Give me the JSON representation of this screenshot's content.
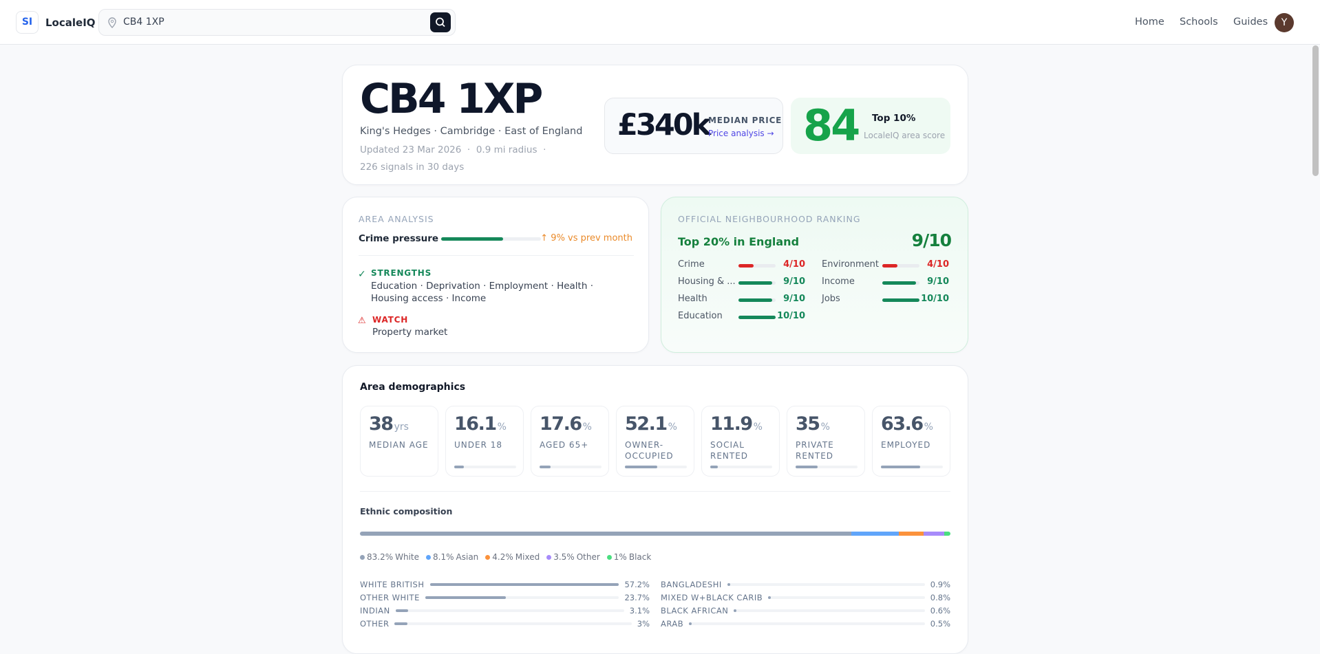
{
  "header": {
    "logo": "SI",
    "brand": "LocaleIQ",
    "search": "CB4 1XP",
    "nav": [
      "Home",
      "Schools",
      "Guides"
    ],
    "avatar": "Y"
  },
  "hero": {
    "title": "CB4 1XP",
    "location": "King's Hedges · Cambridge · East of England",
    "updated": "Updated 23 Mar 2026",
    "radius": "0.9 mi radius",
    "signals": "226 signals in 30 days",
    "price": "£340k",
    "price_label": "MEDIAN PRICE",
    "price_link": "Price analysis →",
    "score": 84,
    "score_rank": "Top 10%",
    "score_label": "LocaleIQ area score"
  },
  "analysis": {
    "heading": "AREA ANALYSIS",
    "metric": "Crime pressure",
    "change": "↑ 9% vs prev month",
    "strengths_heading": "STRENGTHS",
    "strengths": "Education · Deprivation · Employment · Health · Housing access · Income",
    "watch_heading": "WATCH",
    "watch": "Property market"
  },
  "ranking": {
    "heading": "OFFICIAL NEIGHBOURHOOD RANKING",
    "summary": "Top 20% in England",
    "overall": "9/10",
    "domains": [
      {
        "name": "Crime",
        "score": 4,
        "label": "4/10"
      },
      {
        "name": "Environment",
        "score": 4,
        "label": "4/10"
      },
      {
        "name": "Housing & ...",
        "score": 9,
        "label": "9/10"
      },
      {
        "name": "Income",
        "score": 9,
        "label": "9/10"
      },
      {
        "name": "Health",
        "score": 9,
        "label": "9/10"
      },
      {
        "name": "Jobs",
        "score": 10,
        "label": "10/10"
      },
      {
        "name": "Education",
        "score": 10,
        "label": "10/10"
      }
    ]
  },
  "demographics": {
    "heading": "Area demographics",
    "stats": [
      {
        "value": 38,
        "unit": "yrs",
        "label": "MEDIAN AGE"
      },
      {
        "value": 16.1,
        "unit": "%",
        "label": "UNDER 18"
      },
      {
        "value": 17.6,
        "unit": "%",
        "label": "AGED 65+"
      },
      {
        "value": 52.1,
        "unit": "%",
        "label": "OWNER-OCCUPIED"
      },
      {
        "value": 11.9,
        "unit": "%",
        "label": "SOCIAL RENTED"
      },
      {
        "value": 35,
        "unit": "%",
        "label": "PRIVATE RENTED"
      },
      {
        "value": 63.6,
        "unit": "%",
        "label": "EMPLOYED"
      }
    ],
    "ethnic_heading": "Ethnic composition",
    "groups": [
      {
        "name": "White",
        "value": 83.2,
        "value_label": "83.2%",
        "color": "#94a3b8"
      },
      {
        "name": "Asian",
        "value": 8.1,
        "value_label": "8.1%",
        "color": "#60a5fa"
      },
      {
        "name": "Mixed",
        "value": 4.2,
        "value_label": "4.2%",
        "color": "#fb923c"
      },
      {
        "name": "Other",
        "value": 3.5,
        "value_label": "3.5%",
        "color": "#a78bfa"
      },
      {
        "name": "Black",
        "value": 1,
        "value_label": "1%",
        "color": "#4ade80"
      }
    ],
    "detail": [
      {
        "name": "WHITE BRITISH",
        "value": 57.2,
        "value_label": "57.2%"
      },
      {
        "name": "OTHER WHITE",
        "value": 23.7,
        "value_label": "23.7%"
      },
      {
        "name": "INDIAN",
        "value": 3.1,
        "value_label": "3.1%"
      },
      {
        "name": "OTHER",
        "value": 3,
        "value_label": "3%"
      },
      {
        "name": "BANGLADESHI",
        "value": 0.9,
        "value_label": "0.9%"
      },
      {
        "name": "MIXED W+BLACK CARIB",
        "value": 0.8,
        "value_label": "0.8%"
      },
      {
        "name": "BLACK AFRICAN",
        "value": 0.6,
        "value_label": "0.6%"
      },
      {
        "name": "ARAB",
        "value": 0.5,
        "value_label": "0.5%"
      }
    ]
  }
}
